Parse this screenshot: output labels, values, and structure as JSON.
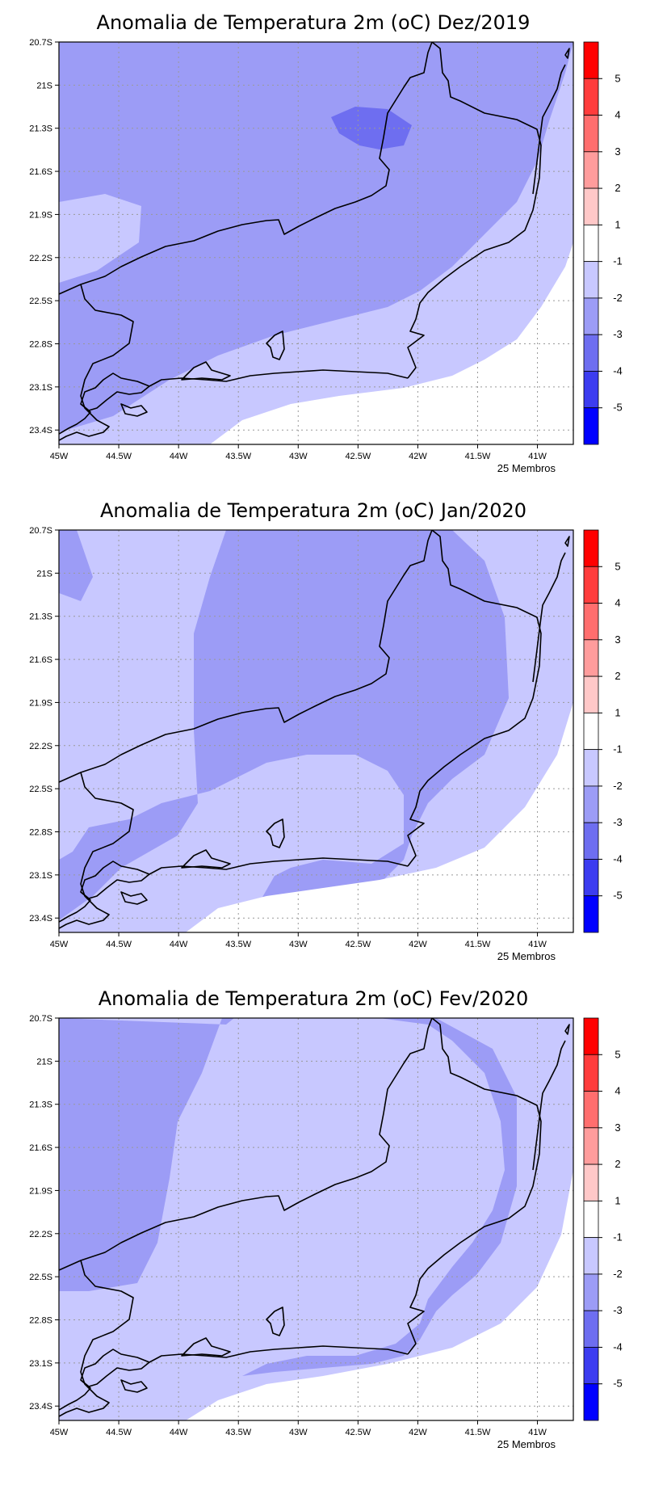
{
  "legend_levels": [
    "5",
    "4",
    "3",
    "2",
    "1",
    "-1",
    "-2",
    "-3",
    "-4",
    "-5"
  ],
  "legend_colors": [
    "#ff0000",
    "#ff3c3c",
    "#ff6e6e",
    "#ff9c9c",
    "#ffc8c8",
    "#ffffff",
    "#c8c8ff",
    "#9c9cf6",
    "#6e6ef0",
    "#3c3cf0",
    "#0000ff"
  ],
  "x_ticks": [
    "45W",
    "44.5W",
    "44W",
    "43.5W",
    "43W",
    "42.5W",
    "42W",
    "41.5W",
    "41W"
  ],
  "y_ticks": [
    "20.7S",
    "21S",
    "21.3S",
    "21.6S",
    "21.9S",
    "22.2S",
    "22.5S",
    "22.8S",
    "23.1S",
    "23.4S"
  ],
  "panels": [
    {
      "title": "Anomalia de Temperatura 2m (oC) Dez/2019",
      "footer": "25 Membros"
    },
    {
      "title": "Anomalia de Temperatura 2m (oC) Jan/2020",
      "footer": "25 Membros"
    },
    {
      "title": "Anomalia de Temperatura 2m (oC) Fev/2020",
      "footer": "25 Membros"
    }
  ]
}
